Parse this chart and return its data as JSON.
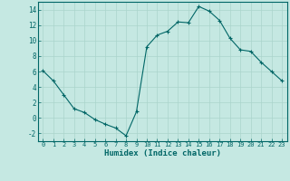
{
  "x": [
    0,
    1,
    2,
    3,
    4,
    5,
    6,
    7,
    8,
    9,
    10,
    11,
    12,
    13,
    14,
    15,
    16,
    17,
    18,
    19,
    20,
    21,
    22,
    23
  ],
  "y": [
    6.1,
    4.8,
    3.0,
    1.2,
    0.7,
    -0.2,
    -0.8,
    -1.3,
    -2.3,
    0.8,
    9.2,
    10.7,
    11.2,
    12.4,
    12.3,
    14.4,
    13.8,
    12.6,
    10.3,
    8.8,
    8.6,
    7.2,
    6.0,
    4.8
  ],
  "xlabel": "Humidex (Indice chaleur)",
  "ylabel": "",
  "title": "",
  "bg_color": "#c5e8e2",
  "line_color": "#006666",
  "marker_color": "#006666",
  "grid_color": "#aad4cc",
  "ylim": [
    -3,
    15
  ],
  "xlim": [
    -0.5,
    23.5
  ],
  "yticks": [
    -2,
    0,
    2,
    4,
    6,
    8,
    10,
    12,
    14
  ],
  "xticks": [
    0,
    1,
    2,
    3,
    4,
    5,
    6,
    7,
    8,
    9,
    10,
    11,
    12,
    13,
    14,
    15,
    16,
    17,
    18,
    19,
    20,
    21,
    22,
    23
  ]
}
